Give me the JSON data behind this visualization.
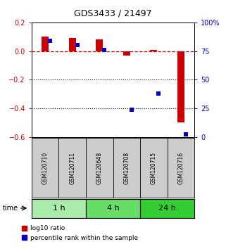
{
  "title": "GDS3433 / 21497",
  "samples": [
    "GSM120710",
    "GSM120711",
    "GSM120648",
    "GSM120708",
    "GSM120715",
    "GSM120716"
  ],
  "time_groups": [
    {
      "label": "1 h",
      "indices": [
        0,
        1
      ],
      "color": "#aaeaaa"
    },
    {
      "label": "4 h",
      "indices": [
        2,
        3
      ],
      "color": "#66dd66"
    },
    {
      "label": "24 h",
      "indices": [
        4,
        5
      ],
      "color": "#33cc33"
    }
  ],
  "log10_ratio": [
    0.1,
    0.09,
    0.08,
    -0.03,
    0.01,
    -0.5
  ],
  "percentile_rank": [
    84,
    80,
    76,
    24,
    38,
    2
  ],
  "ylim_left": [
    -0.6,
    0.2
  ],
  "ylim_right": [
    0,
    100
  ],
  "red_color": "#cc0000",
  "blue_color": "#0000cc",
  "legend_label_red": "log10 ratio",
  "legend_label_blue": "percentile rank within the sample",
  "left_tick_color": "#cc0000",
  "right_tick_color": "#0000cc",
  "sample_box_color": "#cccccc",
  "dashed_line_color": "#cc0000",
  "dotted_line_color": "#000000",
  "title_fontsize": 9,
  "tick_labelsize": 7,
  "sample_fontsize": 5.5,
  "time_fontsize": 8,
  "legend_fontsize": 6.5
}
